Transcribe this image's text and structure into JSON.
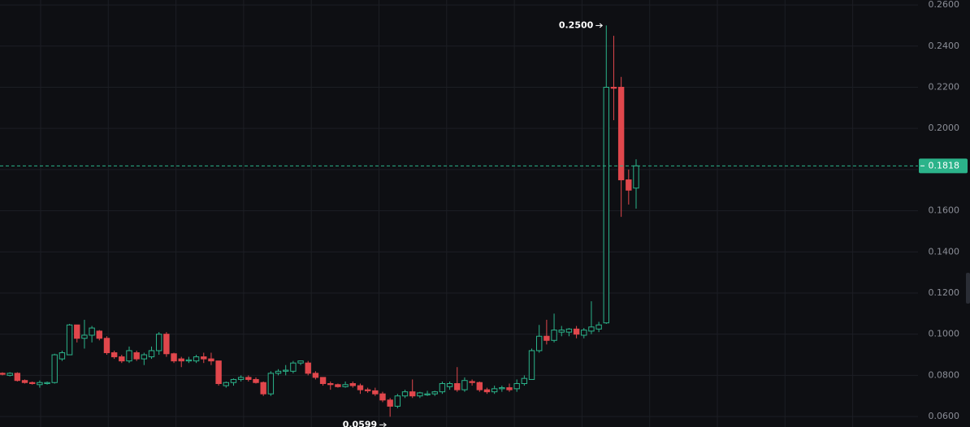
{
  "chart_data": {
    "type": "candlestick",
    "up_color": "#2bb38a",
    "down_color": "#e0474c",
    "grid": true,
    "ylim": [
      0.0549,
      0.2624
    ],
    "yticks": [
      {
        "value": 0.06,
        "label": "0.0600"
      },
      {
        "value": 0.08,
        "label": "0.0800"
      },
      {
        "value": 0.1,
        "label": "0.1000"
      },
      {
        "value": 0.12,
        "label": "0.1200"
      },
      {
        "value": 0.14,
        "label": "0.1400"
      },
      {
        "value": 0.16,
        "label": "0.1600"
      },
      {
        "value": 0.18,
        "label": "0.1800"
      },
      {
        "value": 0.2,
        "label": "0.2000"
      },
      {
        "value": 0.22,
        "label": "0.2200"
      },
      {
        "value": 0.24,
        "label": "0.2400"
      },
      {
        "value": 0.26,
        "label": "0.2600"
      }
    ],
    "last_price": {
      "value": 0.1818,
      "label": "0.1818"
    },
    "annotations": [
      {
        "value": 0.25,
        "label": "0.2500",
        "at": "high"
      },
      {
        "value": 0.0599,
        "label": "0.0599",
        "at": "low"
      }
    ],
    "open": [
      0.081,
      0.08,
      0.081,
      0.0775,
      0.0765,
      0.0755,
      0.076,
      0.0765,
      0.088,
      0.09,
      0.1045,
      0.098,
      0.0995,
      0.1015,
      0.098,
      0.091,
      0.089,
      0.087,
      0.091,
      0.088,
      0.089,
      0.092,
      0.1,
      0.0905,
      0.088,
      0.087,
      0.087,
      0.089,
      0.088,
      0.087,
      0.075,
      0.0765,
      0.078,
      0.079,
      0.078,
      0.0765,
      0.071,
      0.081,
      0.082,
      0.082,
      0.086,
      0.086,
      0.081,
      0.079,
      0.076,
      0.0755,
      0.0745,
      0.076,
      0.075,
      0.073,
      0.0725,
      0.071,
      0.068,
      0.065,
      0.07,
      0.072,
      0.07,
      0.0705,
      0.071,
      0.072,
      0.0745,
      0.076,
      0.073,
      0.077,
      0.0765,
      0.073,
      0.072,
      0.0735,
      0.074,
      0.0735,
      0.076,
      0.078,
      0.092,
      0.099,
      0.097,
      0.101,
      0.101,
      0.1025,
      0.0995,
      0.1015,
      0.1025,
      0.1055,
      0.22,
      0.22,
      0.175,
      0.171
    ],
    "high": [
      0.0815,
      0.0815,
      0.0815,
      0.078,
      0.077,
      0.0775,
      0.077,
      0.0905,
      0.092,
      0.105,
      0.1045,
      0.107,
      0.104,
      0.102,
      0.099,
      0.092,
      0.09,
      0.094,
      0.092,
      0.091,
      0.094,
      0.101,
      0.101,
      0.091,
      0.089,
      0.089,
      0.09,
      0.091,
      0.091,
      0.087,
      0.077,
      0.0785,
      0.08,
      0.08,
      0.079,
      0.077,
      0.082,
      0.083,
      0.085,
      0.087,
      0.087,
      0.087,
      0.082,
      0.079,
      0.077,
      0.076,
      0.077,
      0.077,
      0.076,
      0.074,
      0.074,
      0.072,
      0.069,
      0.071,
      0.073,
      0.078,
      0.072,
      0.0725,
      0.0725,
      0.077,
      0.077,
      0.084,
      0.079,
      0.078,
      0.077,
      0.074,
      0.075,
      0.075,
      0.076,
      0.078,
      0.08,
      0.093,
      0.1045,
      0.107,
      0.11,
      0.104,
      0.103,
      0.104,
      0.103,
      0.116,
      0.106,
      0.25,
      0.245,
      0.225,
      0.18,
      0.185
    ],
    "low": [
      0.08,
      0.0795,
      0.077,
      0.076,
      0.0755,
      0.074,
      0.0755,
      0.076,
      0.087,
      0.09,
      0.096,
      0.093,
      0.096,
      0.097,
      0.09,
      0.088,
      0.086,
      0.086,
      0.087,
      0.085,
      0.088,
      0.09,
      0.089,
      0.086,
      0.084,
      0.086,
      0.086,
      0.086,
      0.085,
      0.075,
      0.074,
      0.075,
      0.077,
      0.077,
      0.076,
      0.07,
      0.07,
      0.08,
      0.08,
      0.081,
      0.085,
      0.08,
      0.078,
      0.075,
      0.073,
      0.074,
      0.074,
      0.074,
      0.071,
      0.0715,
      0.07,
      0.067,
      0.0599,
      0.064,
      0.069,
      0.069,
      0.069,
      0.07,
      0.07,
      0.071,
      0.073,
      0.072,
      0.072,
      0.075,
      0.072,
      0.071,
      0.071,
      0.072,
      0.072,
      0.072,
      0.075,
      0.078,
      0.091,
      0.095,
      0.096,
      0.099,
      0.099,
      0.098,
      0.098,
      0.1,
      0.101,
      0.105,
      0.204,
      0.157,
      0.163,
      0.161
    ],
    "close": [
      0.0805,
      0.081,
      0.0775,
      0.0765,
      0.076,
      0.0765,
      0.0765,
      0.09,
      0.091,
      0.1045,
      0.098,
      0.0995,
      0.103,
      0.098,
      0.091,
      0.089,
      0.087,
      0.092,
      0.088,
      0.09,
      0.092,
      0.1,
      0.0905,
      0.087,
      0.087,
      0.0875,
      0.089,
      0.088,
      0.087,
      0.076,
      0.0765,
      0.078,
      0.079,
      0.078,
      0.0765,
      0.071,
      0.081,
      0.082,
      0.0825,
      0.086,
      0.087,
      0.081,
      0.079,
      0.076,
      0.0755,
      0.0745,
      0.0755,
      0.075,
      0.073,
      0.0725,
      0.071,
      0.068,
      0.065,
      0.07,
      0.072,
      0.07,
      0.0715,
      0.071,
      0.072,
      0.076,
      0.076,
      0.073,
      0.0775,
      0.0765,
      0.073,
      0.072,
      0.0735,
      0.074,
      0.073,
      0.076,
      0.0785,
      0.092,
      0.099,
      0.097,
      0.102,
      0.102,
      0.1025,
      0.1,
      0.102,
      0.1035,
      0.1045,
      0.22,
      0.2195,
      0.175,
      0.17,
      0.1818
    ]
  }
}
